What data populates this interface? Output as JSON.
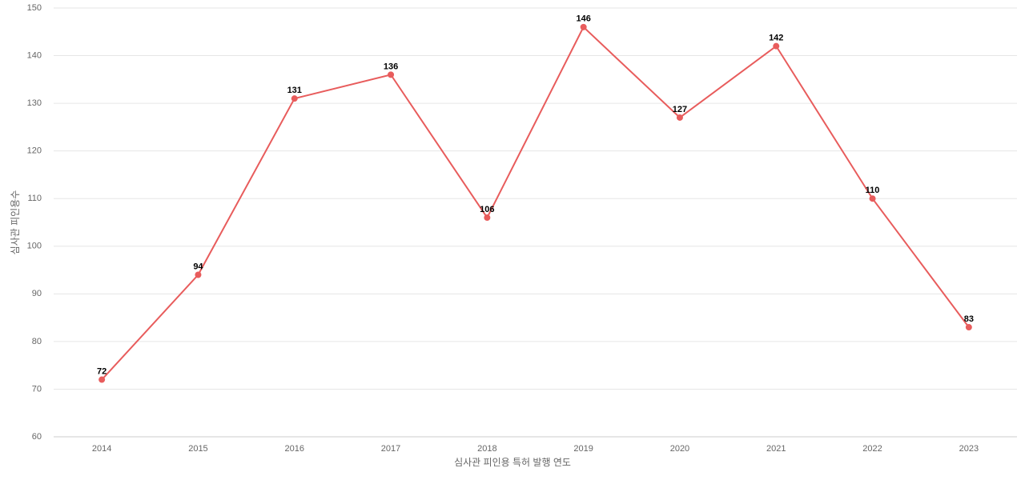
{
  "chart_data": {
    "type": "line",
    "x_label": "심사관 피인용 특허 발행 연도",
    "y_label": "심사관 피인용수",
    "categories": [
      "2014",
      "2015",
      "2016",
      "2017",
      "2018",
      "2019",
      "2020",
      "2021",
      "2022",
      "2023"
    ],
    "values": [
      72,
      94,
      131,
      136,
      106,
      146,
      127,
      142,
      110,
      83
    ],
    "color": "#e85c5c",
    "ylim": [
      60,
      150
    ],
    "yticks": [
      60,
      70,
      80,
      90,
      100,
      110,
      120,
      130,
      140,
      150
    ],
    "grid": true
  }
}
